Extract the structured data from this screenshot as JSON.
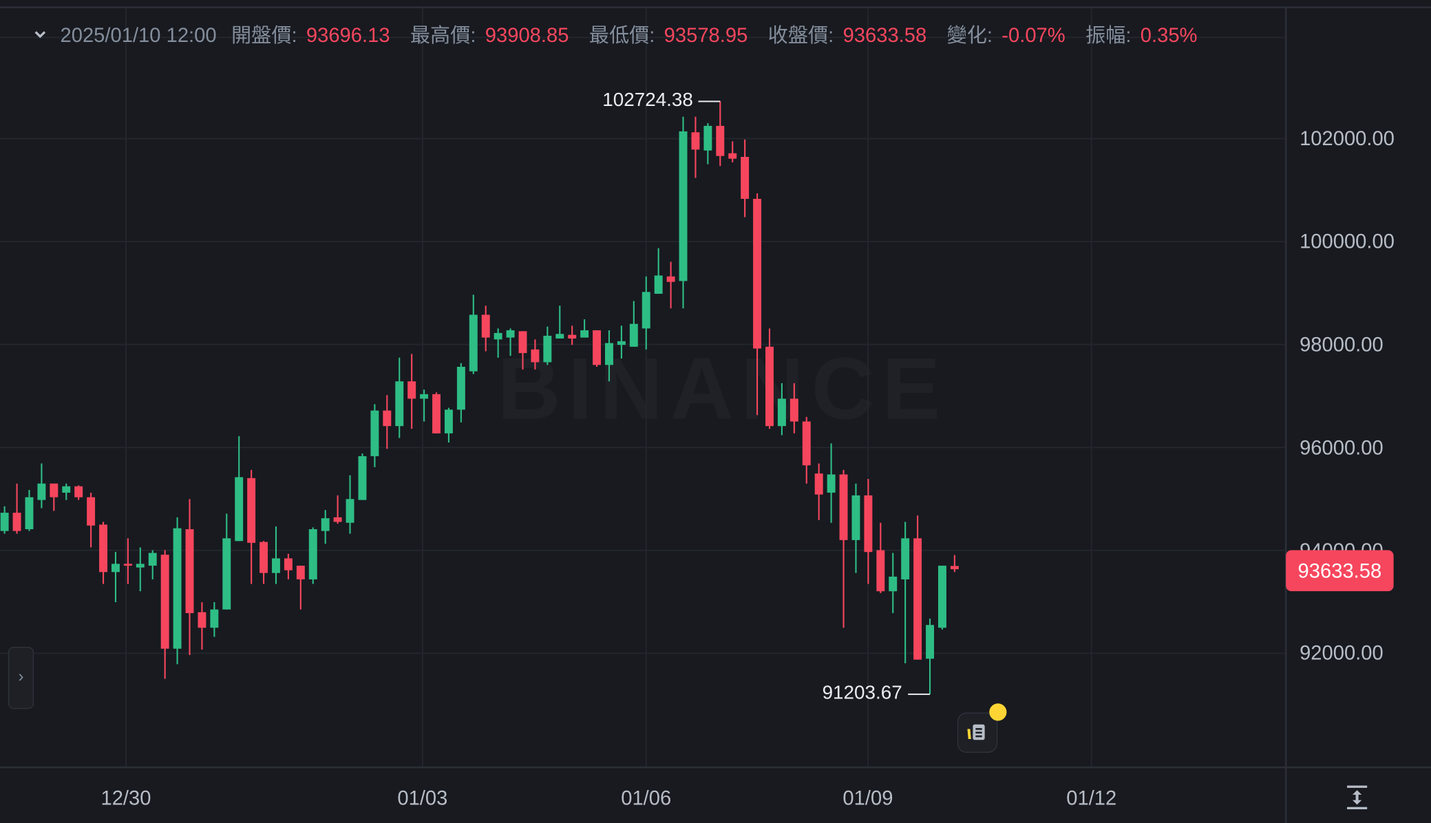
{
  "header": {
    "datetime": "2025/01/10 12:00",
    "open_label": "開盤價:",
    "open": "93696.13",
    "high_label": "最高價:",
    "high": "93908.85",
    "low_label": "最低價:",
    "low": "93578.95",
    "close_label": "收盤價:",
    "close": "93633.58",
    "change_label": "變化:",
    "change": "-0.07%",
    "amplitude_label": "振幅:",
    "amplitude": "0.35%"
  },
  "watermark": "BINANCE",
  "price_axis": [
    "102000.00",
    "100000.00",
    "98000.00",
    "96000.00",
    "94000.00",
    "92000.00"
  ],
  "time_axis": [
    "12/30",
    "01/03",
    "01/06",
    "01/09",
    "01/12"
  ],
  "last_price": "93633.58",
  "high_marker": "102724.38",
  "low_marker": "91203.67",
  "colors": {
    "up": "#2ebd85",
    "down": "#f6465d",
    "background": "#181a20",
    "grid": "#23262d",
    "accent": "#fcd535"
  },
  "icons": {
    "collapse": "chevron-down-icon",
    "expand": "chevron-right-icon",
    "news": "news-icon",
    "fit": "fit-vertical-icon"
  },
  "chart_data": {
    "type": "candlestick",
    "ylim": [
      90000,
      103500
    ],
    "y_ticks": [
      102000,
      100000,
      98000,
      96000,
      94000,
      92000
    ],
    "grid": true,
    "fields": [
      "open",
      "high",
      "low",
      "close"
    ],
    "candles": [
      [
        94376,
        94855,
        94323,
        94731
      ],
      [
        94731,
        95298,
        94323,
        94376
      ],
      [
        94411,
        95174,
        94376,
        95032
      ],
      [
        94979,
        95688,
        94819,
        95298
      ],
      [
        95298,
        95298,
        94766,
        95032
      ],
      [
        95121,
        95298,
        94979,
        95245
      ],
      [
        95245,
        95263,
        94979,
        95032
      ],
      [
        95032,
        95121,
        94057,
        94482
      ],
      [
        94500,
        94553,
        93347,
        93578
      ],
      [
        93578,
        93968,
        92993,
        93738
      ],
      [
        93738,
        94234,
        93347,
        93702
      ],
      [
        93667,
        94057,
        93205,
        93738
      ],
      [
        93702,
        94004,
        93436,
        93950
      ],
      [
        93915,
        94004,
        91503,
        92089
      ],
      [
        92089,
        94642,
        91787,
        94429
      ],
      [
        94411,
        94997,
        91965,
        92780
      ],
      [
        92798,
        92993,
        92071,
        92496
      ],
      [
        92496,
        92993,
        92319,
        92851
      ],
      [
        92851,
        94713,
        92851,
        94234
      ],
      [
        94181,
        96220,
        94181,
        95422
      ],
      [
        95404,
        95564,
        93347,
        94146
      ],
      [
        94163,
        94181,
        93347,
        93560
      ],
      [
        93560,
        94465,
        93347,
        93844
      ],
      [
        93844,
        93933,
        93436,
        93613
      ],
      [
        93702,
        93702,
        92851,
        93436
      ],
      [
        93436,
        94447,
        93347,
        94411
      ],
      [
        94376,
        94784,
        94128,
        94624
      ],
      [
        94642,
        95068,
        94518,
        94553
      ],
      [
        94536,
        95458,
        94323,
        94997
      ],
      [
        94979,
        95883,
        94979,
        95830
      ],
      [
        95830,
        96841,
        95617,
        96717
      ],
      [
        96717,
        97018,
        95972,
        96415
      ],
      [
        96415,
        97745,
        96184,
        97284
      ],
      [
        97284,
        97816,
        96362,
        96947
      ],
      [
        96947,
        97124,
        96504,
        97035
      ],
      [
        97035,
        97070,
        96273,
        96273
      ],
      [
        96273,
        96770,
        96096,
        96734
      ],
      [
        96734,
        97638,
        96486,
        97567
      ],
      [
        97479,
        98968,
        97425,
        98578
      ],
      [
        98578,
        98755,
        97869,
        98135
      ],
      [
        98099,
        98312,
        97745,
        98224
      ],
      [
        98135,
        98312,
        97780,
        98277
      ],
      [
        98259,
        98259,
        97514,
        97833
      ],
      [
        97904,
        98099,
        97514,
        97656
      ],
      [
        97656,
        98348,
        97603,
        98170
      ],
      [
        98117,
        98755,
        98117,
        98206
      ],
      [
        98188,
        98366,
        97993,
        98117
      ],
      [
        98135,
        98490,
        98135,
        98277
      ],
      [
        98277,
        98277,
        97567,
        97603
      ],
      [
        97603,
        98277,
        97284,
        98028
      ],
      [
        97993,
        98366,
        97727,
        98064
      ],
      [
        97957,
        98844,
        97957,
        98401
      ],
      [
        98312,
        99323,
        97904,
        99022
      ],
      [
        98986,
        99873,
        98986,
        99341
      ],
      [
        99323,
        99607,
        98702,
        99217
      ],
      [
        99234,
        102426,
        98702,
        102142
      ],
      [
        102124,
        102426,
        101238,
        101788
      ],
      [
        101770,
        102302,
        101504,
        102249
      ],
      [
        102249,
        102724.38,
        101469,
        101664
      ],
      [
        101717,
        101948,
        101540,
        101611
      ],
      [
        101646,
        101983,
        100476,
        100831
      ],
      [
        100831,
        100937,
        96628,
        97922
      ],
      [
        97957,
        98312,
        96362,
        96415
      ],
      [
        96415,
        97248,
        96238,
        96947
      ],
      [
        96947,
        97248,
        96273,
        96504
      ],
      [
        96504,
        96593,
        95298,
        95652
      ],
      [
        95493,
        95688,
        94589,
        95085
      ],
      [
        95121,
        96078,
        94536,
        95475
      ],
      [
        95475,
        95564,
        92496,
        94199
      ],
      [
        94199,
        95298,
        93560,
        95068
      ],
      [
        95068,
        95387,
        93347,
        93968
      ],
      [
        94004,
        94536,
        93170,
        93205
      ],
      [
        93205,
        93950,
        92780,
        93489
      ],
      [
        93436,
        94553,
        91805,
        94234
      ],
      [
        94234,
        94677,
        91876,
        91876
      ],
      [
        91894,
        92674,
        91203.67,
        92550
      ],
      [
        92496,
        93702,
        92461,
        93702
      ],
      [
        93696.13,
        93908.85,
        93578.95,
        93633.58
      ]
    ]
  }
}
